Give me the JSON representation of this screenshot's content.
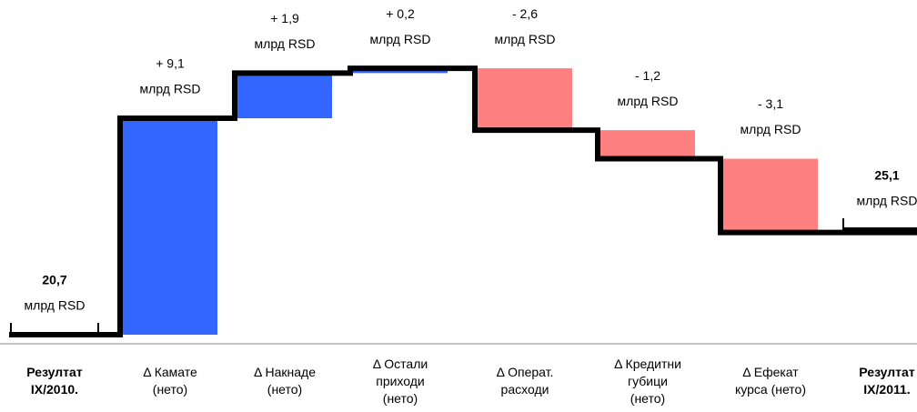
{
  "chart_data": {
    "type": "waterfall",
    "categories": [
      "Резултат\nIX/2010.",
      "Δ Камате\n(нето)",
      "Δ Накнаде\n(нето)",
      "Δ Остали\nприходи\n(нето)",
      "Δ Операт.\nрасходи",
      "Δ Кредитни\nгубици\n(нето)",
      "Δ Ефекат\nкурса (нето)",
      "Резултат\nIX/2011."
    ],
    "values": [
      20.7,
      9.1,
      1.9,
      0.2,
      -2.6,
      -1.2,
      -3.1,
      25.1
    ],
    "value_labels": [
      "20,7",
      "+ 9,1",
      "+ 1,9",
      "+ 0,2",
      "- 2,6",
      "- 1,2",
      "- 3,1",
      "25,1"
    ],
    "unit": "млрд RSD",
    "totals": [
      0,
      7
    ],
    "increase_color": "#3366ff",
    "decrease_color": "#ff8080",
    "ylim": [
      19,
      34
    ]
  }
}
